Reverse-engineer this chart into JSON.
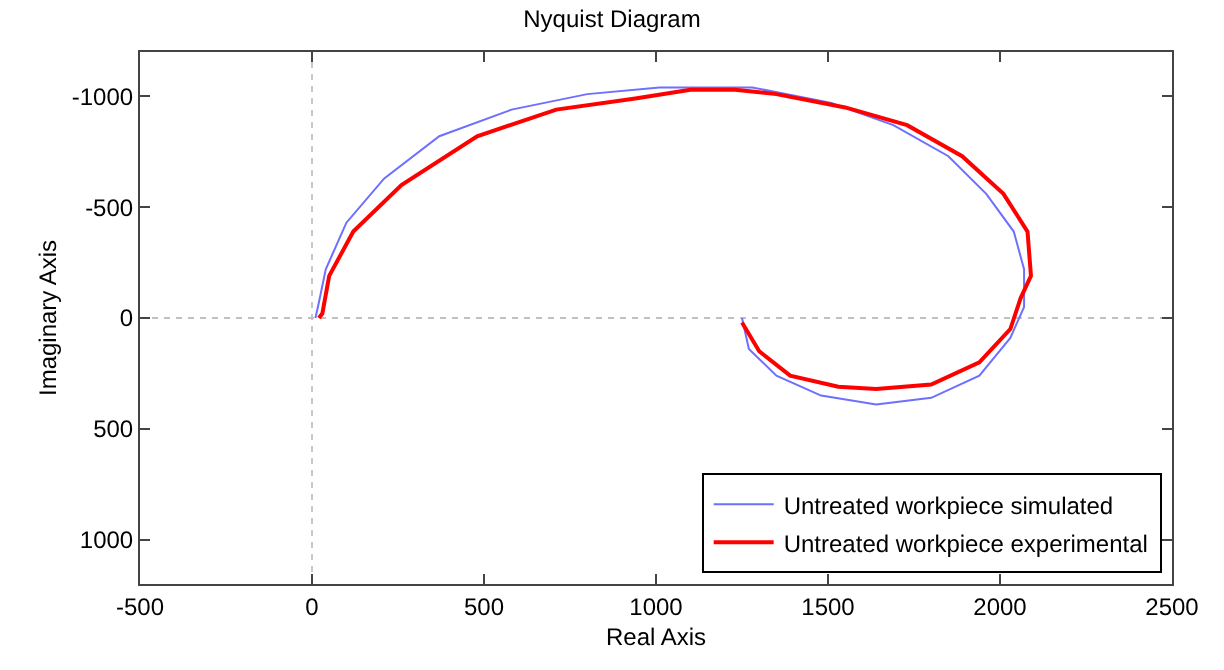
{
  "chart_data": {
    "type": "line",
    "title": "Nyquist Diagram",
    "xlabel": "Real Axis",
    "ylabel": "Imaginary Axis",
    "xlim": [
      -500,
      2500
    ],
    "ylim": [
      1200,
      -1200
    ],
    "xticks": [
      -500,
      0,
      500,
      1000,
      1500,
      2000,
      2500
    ],
    "yticks": [
      -1000,
      -500,
      0,
      500,
      1000
    ],
    "legend": "bottom right",
    "line_style": "solid",
    "ref_lines": [
      {
        "axis": "x",
        "value": 0,
        "color": "#c8c8c8",
        "line_style": "dotted"
      },
      {
        "axis": "y",
        "value": 0,
        "color": "#c0c0c0",
        "line_style": "dotted"
      }
    ],
    "series": [
      {
        "name": "Untreated workpiece simulated",
        "color": "#6f6fff",
        "x": [
          1250,
          1270,
          1350,
          1480,
          1640,
          1800,
          1940,
          2030,
          2070,
          2070,
          2040,
          1960,
          1850,
          1690,
          1510,
          1280,
          1170,
          1010,
          800,
          580,
          370,
          210,
          100,
          40,
          20,
          10
        ],
        "values": [
          0,
          140,
          260,
          350,
          390,
          360,
          260,
          90,
          -50,
          -220,
          -390,
          -560,
          -730,
          -870,
          -970,
          -1040,
          -1040,
          -1040,
          -1010,
          -940,
          -820,
          -630,
          -430,
          -220,
          -70,
          0
        ]
      },
      {
        "name": "Untreated workpiece experimental",
        "color": "#ff0000",
        "x": [
          1250,
          1300,
          1390,
          1530,
          1640,
          1800,
          1940,
          2030,
          2060,
          2090,
          2080,
          2010,
          1890,
          1730,
          1550,
          1350,
          1230,
          1100,
          940,
          710,
          480,
          260,
          120,
          50,
          30,
          20
        ],
        "values": [
          20,
          150,
          260,
          310,
          320,
          300,
          200,
          50,
          -90,
          -190,
          -390,
          -560,
          -730,
          -870,
          -950,
          -1010,
          -1030,
          -1030,
          -990,
          -940,
          -820,
          -600,
          -390,
          -190,
          -20,
          0
        ]
      }
    ]
  }
}
